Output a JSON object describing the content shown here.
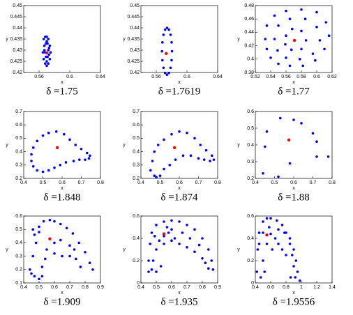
{
  "chart_data": [
    {
      "type": "scatter",
      "title": "δ =1.75",
      "xlabel": "x",
      "ylabel": "y",
      "xlim": [
        0.54,
        0.64
      ],
      "xticks": [
        0.56,
        0.6,
        0.64
      ],
      "ylim": [
        0.42,
        0.45
      ],
      "yticks": [
        0.42,
        0.425,
        0.43,
        0.435,
        0.44,
        0.445,
        0.45
      ],
      "series": [
        {
          "color": "#0000ff",
          "x": [
            0.566,
            0.568,
            0.57,
            0.572,
            0.574,
            0.575,
            0.574,
            0.572,
            0.57,
            0.568,
            0.566,
            0.565,
            0.567,
            0.569,
            0.571,
            0.573,
            0.569,
            0.571,
            0.567,
            0.573,
            0.57,
            0.568,
            0.572,
            0.57
          ],
          "values": [
            0.435,
            0.436,
            0.436,
            0.435,
            0.432,
            0.429,
            0.426,
            0.424,
            0.423,
            0.424,
            0.426,
            0.429,
            0.432,
            0.433,
            0.433,
            0.431,
            0.427,
            0.427,
            0.43,
            0.428,
            0.425,
            0.429,
            0.43,
            0.434
          ]
        },
        {
          "color": "#ff0000",
          "x": [
            0.57
          ],
          "values": [
            0.4288
          ]
        }
      ]
    },
    {
      "type": "scatter",
      "title": "δ =1.7619",
      "xlabel": "x",
      "ylabel": "y",
      "xlim": [
        0.54,
        0.64
      ],
      "xticks": [
        0.56,
        0.6,
        0.64
      ],
      "ylim": [
        0.42,
        0.45
      ],
      "yticks": [
        0.42,
        0.425,
        0.43,
        0.435,
        0.44,
        0.445,
        0.45
      ],
      "series": [
        {
          "color": "#0000ff",
          "x": [
            0.5805,
            0.58,
            0.5786,
            0.5765,
            0.574,
            0.5715,
            0.5694,
            0.568,
            0.5675,
            0.568,
            0.5694,
            0.5715,
            0.574,
            0.5765,
            0.5786,
            0.58
          ],
          "values": [
            0.4295,
            0.4335,
            0.4369,
            0.4392,
            0.44,
            0.4392,
            0.4369,
            0.4335,
            0.4295,
            0.4255,
            0.4221,
            0.4198,
            0.419,
            0.4198,
            0.4221,
            0.4255
          ]
        },
        {
          "color": "#ff0000",
          "x": [
            0.573
          ],
          "values": [
            0.4285
          ]
        }
      ]
    },
    {
      "type": "scatter",
      "title": "δ =1.77",
      "xlabel": "x",
      "ylabel": "y",
      "xlim": [
        0.52,
        0.62
      ],
      "xticks": [
        0.52,
        0.54,
        0.56,
        0.58,
        0.6,
        0.62
      ],
      "ylim": [
        0.38,
        0.48
      ],
      "yticks": [
        0.38,
        0.4,
        0.42,
        0.44,
        0.46,
        0.48
      ],
      "series": [
        {
          "color": "#0000ff",
          "x": [
            0.533,
            0.535,
            0.545,
            0.56,
            0.58,
            0.6,
            0.612,
            0.616,
            0.61,
            0.598,
            0.582,
            0.565,
            0.55,
            0.54,
            0.535,
            0.545,
            0.55,
            0.565,
            0.585,
            0.6,
            0.604,
            0.595,
            0.578,
            0.56,
            0.549,
            0.56,
            0.568,
            0.58,
            0.586,
            0.58,
            0.567,
            0.559
          ],
          "values": [
            0.43,
            0.45,
            0.465,
            0.472,
            0.474,
            0.47,
            0.455,
            0.435,
            0.415,
            0.398,
            0.39,
            0.39,
            0.393,
            0.402,
            0.415,
            0.43,
            0.45,
            0.46,
            0.46,
            0.448,
            0.428,
            0.408,
            0.4,
            0.402,
            0.413,
            0.435,
            0.445,
            0.442,
            0.428,
            0.415,
            0.414,
            0.422
          ]
        },
        {
          "color": "#ff0000",
          "x": [
            0.571
          ],
          "values": [
            0.428
          ]
        }
      ]
    },
    {
      "type": "scatter",
      "title": "δ =1.848",
      "xlabel": "x",
      "ylabel": "y",
      "xlim": [
        0.4,
        0.8
      ],
      "xticks": [
        0.4,
        0.5,
        0.6,
        0.7,
        0.8
      ],
      "ylim": [
        0.2,
        0.7
      ],
      "yticks": [
        0.2,
        0.3,
        0.4,
        0.5,
        0.6,
        0.7
      ],
      "series": [
        {
          "color": "#0000ff",
          "x": [
            0.44,
            0.44,
            0.45,
            0.47,
            0.5,
            0.53,
            0.57,
            0.61,
            0.64,
            0.67,
            0.7,
            0.73,
            0.745,
            0.74,
            0.72,
            0.69,
            0.66,
            0.62,
            0.59,
            0.56,
            0.53,
            0.5,
            0.47,
            0.45
          ],
          "values": [
            0.33,
            0.38,
            0.43,
            0.48,
            0.52,
            0.54,
            0.55,
            0.53,
            0.49,
            0.45,
            0.42,
            0.39,
            0.37,
            0.35,
            0.34,
            0.34,
            0.33,
            0.32,
            0.3,
            0.28,
            0.26,
            0.25,
            0.26,
            0.29
          ]
        },
        {
          "color": "#ff0000",
          "x": [
            0.575
          ],
          "values": [
            0.43
          ]
        }
      ]
    },
    {
      "type": "scatter",
      "title": "δ =1.874",
      "xlabel": "x",
      "ylabel": "y",
      "xlim": [
        0.4,
        0.8
      ],
      "xticks": [
        0.4,
        0.5,
        0.6,
        0.7,
        0.8
      ],
      "ylim": [
        0.2,
        0.7
      ],
      "yticks": [
        0.2,
        0.3,
        0.4,
        0.5,
        0.6,
        0.7
      ],
      "series": [
        {
          "color": "#0000ff",
          "x": [
            0.45,
            0.46,
            0.47,
            0.49,
            0.52,
            0.56,
            0.6,
            0.64,
            0.68,
            0.71,
            0.74,
            0.77,
            0.78,
            0.76,
            0.73,
            0.7,
            0.66,
            0.62,
            0.58,
            0.55,
            0.52,
            0.5,
            0.48,
            0.47
          ],
          "values": [
            0.26,
            0.33,
            0.4,
            0.45,
            0.49,
            0.53,
            0.55,
            0.54,
            0.5,
            0.45,
            0.41,
            0.37,
            0.34,
            0.33,
            0.34,
            0.35,
            0.37,
            0.37,
            0.34,
            0.3,
            0.27,
            0.22,
            0.21,
            0.22
          ]
        },
        {
          "color": "#ff0000",
          "x": [
            0.575
          ],
          "values": [
            0.43
          ]
        }
      ]
    },
    {
      "type": "scatter",
      "title": "δ =1.88",
      "xlabel": "x",
      "ylabel": "y",
      "xlim": [
        0.4,
        0.8
      ],
      "xticks": [
        0.4,
        0.5,
        0.6,
        0.7,
        0.8
      ],
      "ylim": [
        0.2,
        0.6
      ],
      "yticks": [
        0.2,
        0.3,
        0.4,
        0.5,
        0.6
      ],
      "series": [
        {
          "color": "#0000ff",
          "x": [
            0.44,
            0.45,
            0.46,
            0.52,
            0.53,
            0.58,
            0.6,
            0.64,
            0.7,
            0.72,
            0.72,
            0.78
          ],
          "values": [
            0.23,
            0.39,
            0.48,
            0.21,
            0.56,
            0.29,
            0.55,
            0.53,
            0.47,
            0.42,
            0.33,
            0.33
          ]
        },
        {
          "color": "#ff0000",
          "x": [
            0.575
          ],
          "values": [
            0.43
          ]
        }
      ]
    },
    {
      "type": "scatter",
      "title": "δ =1.909",
      "xlabel": "x",
      "ylabel": "y",
      "xlim": [
        0.4,
        0.9
      ],
      "xticks": [
        0.4,
        0.5,
        0.6,
        0.7,
        0.8,
        0.9
      ],
      "ylim": [
        0.1,
        0.6
      ],
      "yticks": [
        0.1,
        0.2,
        0.3,
        0.4,
        0.5,
        0.6
      ],
      "series": [
        {
          "color": "#0000ff",
          "x": [
            0.45,
            0.47,
            0.5,
            0.52,
            0.44,
            0.46,
            0.48,
            0.5,
            0.5,
            0.53,
            0.57,
            0.6,
            0.64,
            0.68,
            0.72,
            0.76,
            0.8,
            0.83,
            0.85,
            0.46,
            0.47,
            0.55,
            0.6,
            0.65,
            0.7,
            0.74,
            0.77,
            0.6,
            0.64,
            0.7,
            0.73,
            0.52,
            0.54
          ],
          "values": [
            0.17,
            0.15,
            0.13,
            0.15,
            0.2,
            0.3,
            0.4,
            0.48,
            0.52,
            0.56,
            0.57,
            0.56,
            0.54,
            0.51,
            0.47,
            0.4,
            0.33,
            0.25,
            0.2,
            0.5,
            0.46,
            0.35,
            0.32,
            0.3,
            0.3,
            0.28,
            0.22,
            0.4,
            0.42,
            0.38,
            0.35,
            0.22,
            0.28
          ]
        },
        {
          "color": "#ff0000",
          "x": [
            0.57
          ],
          "values": [
            0.43
          ]
        }
      ]
    },
    {
      "type": "scatter",
      "title": "δ =1.935",
      "xlabel": "x",
      "ylabel": "y",
      "xlim": [
        0.4,
        0.9
      ],
      "xticks": [
        0.4,
        0.5,
        0.6,
        0.7,
        0.8,
        0.9
      ],
      "ylim": [
        0,
        0.6
      ],
      "yticks": [
        0,
        0.2,
        0.4,
        0.6
      ],
      "series": [
        {
          "color": "#0000ff",
          "x": [
            0.45,
            0.46,
            0.47,
            0.5,
            0.55,
            0.6,
            0.65,
            0.7,
            0.75,
            0.8,
            0.84,
            0.86,
            0.87,
            0.84,
            0.8,
            0.75,
            0.7,
            0.65,
            0.6,
            0.55,
            0.5,
            0.48,
            0.47,
            0.5,
            0.53,
            0.55,
            0.58,
            0.62,
            0.52,
            0.6,
            0.57,
            0.67,
            0.72,
            0.78,
            0.82,
            0.45,
            0.49
          ],
          "values": [
            0.2,
            0.35,
            0.45,
            0.52,
            0.55,
            0.56,
            0.55,
            0.52,
            0.48,
            0.4,
            0.3,
            0.2,
            0.12,
            0.13,
            0.22,
            0.28,
            0.32,
            0.35,
            0.38,
            0.35,
            0.3,
            0.2,
            0.12,
            0.1,
            0.15,
            0.42,
            0.45,
            0.4,
            0.38,
            0.48,
            0.5,
            0.45,
            0.4,
            0.34,
            0.18,
            0.1,
            0.42
          ]
        },
        {
          "color": "#ff0000",
          "x": [
            0.55
          ],
          "values": [
            0.44
          ]
        }
      ]
    },
    {
      "type": "scatter",
      "title": "δ =1.9556",
      "xlabel": "x",
      "ylabel": "y",
      "xlim": [
        0.4,
        1.4
      ],
      "xticks": [
        0.4,
        0.6,
        0.8,
        1,
        1.2,
        1.4
      ],
      "ylim": [
        0,
        0.6
      ],
      "yticks": [
        0,
        0.2,
        0.4,
        0.6
      ],
      "series": [
        {
          "color": "#0000ff",
          "x": [
            0.42,
            0.43,
            0.45,
            0.5,
            0.55,
            0.6,
            0.68,
            0.75,
            0.8,
            0.85,
            0.88,
            0.9,
            0.92,
            0.95,
            0.93,
            0.9,
            0.85,
            0.78,
            0.7,
            0.6,
            0.55,
            0.5,
            0.47,
            0.52,
            0.45,
            0.62,
            0.7,
            0.75,
            0.8,
            0.58,
            0.66,
            0.5,
            0.98,
            0.86
          ],
          "values": [
            0.1,
            0.3,
            0.45,
            0.55,
            0.58,
            0.58,
            0.56,
            0.52,
            0.45,
            0.35,
            0.25,
            0.15,
            0.05,
            0.1,
            0.2,
            0.3,
            0.4,
            0.45,
            0.48,
            0.44,
            0.35,
            0.2,
            0.05,
            0.1,
            0.35,
            0.3,
            0.35,
            0.3,
            0.25,
            0.5,
            0.4,
            0.45,
            0.02,
            0.05
          ]
        },
        {
          "color": "#ff0000",
          "x": [
            0.55
          ],
          "values": [
            0.43
          ]
        }
      ]
    }
  ]
}
